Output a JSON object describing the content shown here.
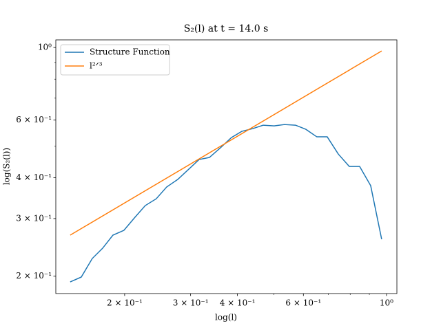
{
  "chart_data": {
    "type": "line",
    "title": "S₂(l) at t = 14.0 s",
    "xlabel": "log(l)",
    "ylabel": "log(S₂(l))",
    "xscale": "log",
    "yscale": "log",
    "xlim": [
      0.131,
      1.066
    ],
    "ylim": [
      0.177,
      1.055
    ],
    "xticks": [
      {
        "value": 0.2,
        "label": "2 × 10⁻¹"
      },
      {
        "value": 0.3,
        "label": "3 × 10⁻¹"
      },
      {
        "value": 0.4,
        "label": "4 × 10⁻¹"
      },
      {
        "value": 0.6,
        "label": "6 × 10⁻¹"
      },
      {
        "value": 1,
        "label": "10⁰"
      }
    ],
    "xminor": [
      0.5,
      0.7,
      0.8,
      0.9
    ],
    "yticks": [
      {
        "value": 0.2,
        "label": "2 × 10⁻¹"
      },
      {
        "value": 0.3,
        "label": "3 × 10⁻¹"
      },
      {
        "value": 0.4,
        "label": "4 × 10⁻¹"
      },
      {
        "value": 0.6,
        "label": "6 × 10⁻¹"
      },
      {
        "value": 1,
        "label": "10⁰"
      }
    ],
    "yminor": [
      0.5,
      0.7,
      0.8,
      0.9
    ],
    "legend": "upper left",
    "grid": false,
    "series": [
      {
        "name": "Structure Function",
        "color": "#1f77b4",
        "x": [
          0.1431,
          0.1532,
          0.1639,
          0.1746,
          0.1861,
          0.1991,
          0.2131,
          0.227,
          0.2429,
          0.2589,
          0.2771,
          0.2953,
          0.316,
          0.3367,
          0.3602,
          0.3855,
          0.4108,
          0.4396,
          0.4685,
          0.5013,
          0.5341,
          0.5717,
          0.6091,
          0.6518,
          0.6947,
          0.7435,
          0.7956,
          0.8478,
          0.9073,
          0.9707
        ],
        "values": [
          0.1921,
          0.1988,
          0.2265,
          0.2434,
          0.267,
          0.2762,
          0.3028,
          0.3287,
          0.3449,
          0.3746,
          0.3951,
          0.4226,
          0.4545,
          0.4612,
          0.4935,
          0.5306,
          0.5542,
          0.565,
          0.5788,
          0.576,
          0.5816,
          0.5788,
          0.5623,
          0.5332,
          0.5332,
          0.4724,
          0.433,
          0.433,
          0.3782,
          0.2594
        ]
      },
      {
        "name": "l²ᐟ³",
        "color": "#ff7f0e",
        "x": [
          0.1431,
          0.9707
        ],
        "values": [
          0.267,
          0.976
        ]
      }
    ]
  }
}
